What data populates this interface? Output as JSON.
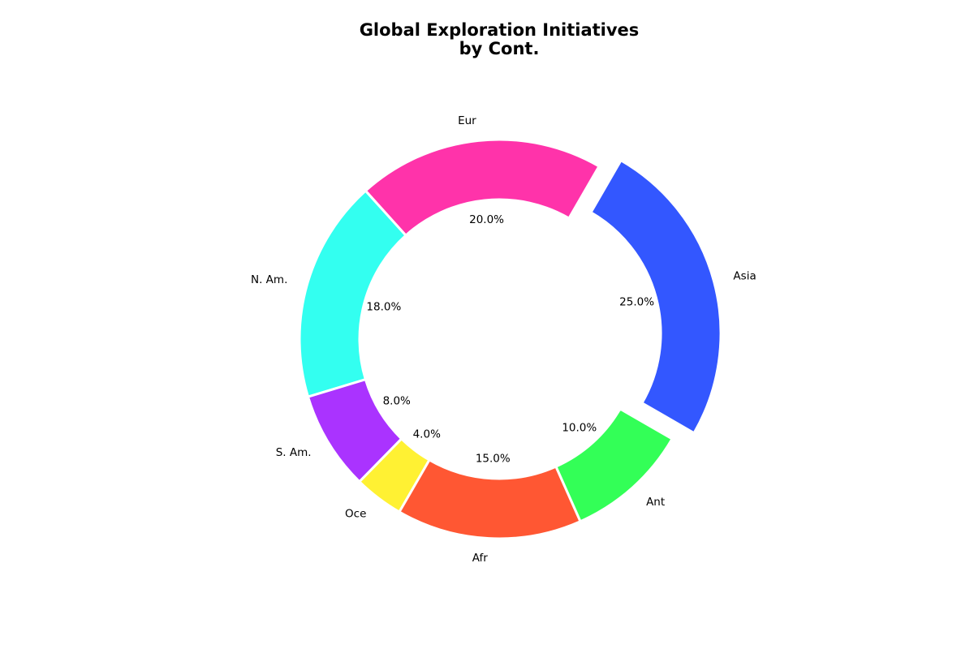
{
  "chart_data": {
    "type": "pie",
    "title_lines": [
      "Global Exploration Initiatives",
      "by Cont."
    ],
    "donut": true,
    "start_angle_deg": 60,
    "direction": "counterclockwise",
    "slices": [
      {
        "label": "Eur",
        "value": 20.0,
        "pct_label": "20.0%",
        "color": "#ff33aa",
        "exploded": false
      },
      {
        "label": "N. Am.",
        "value": 18.0,
        "pct_label": "18.0%",
        "color": "#33fff0",
        "exploded": false
      },
      {
        "label": "S. Am.",
        "value": 8.0,
        "pct_label": "8.0%",
        "color": "#aa33ff",
        "exploded": false
      },
      {
        "label": "Oce",
        "value": 4.0,
        "pct_label": "4.0%",
        "color": "#fff133",
        "exploded": false
      },
      {
        "label": "Afr",
        "value": 15.0,
        "pct_label": "15.0%",
        "color": "#ff5733",
        "exploded": false
      },
      {
        "label": "Ant",
        "value": 10.0,
        "pct_label": "10.0%",
        "color": "#33ff57",
        "exploded": false
      },
      {
        "label": "Asia",
        "value": 25.0,
        "pct_label": "25.0%",
        "color": "#3357ff",
        "exploded": true
      }
    ]
  }
}
